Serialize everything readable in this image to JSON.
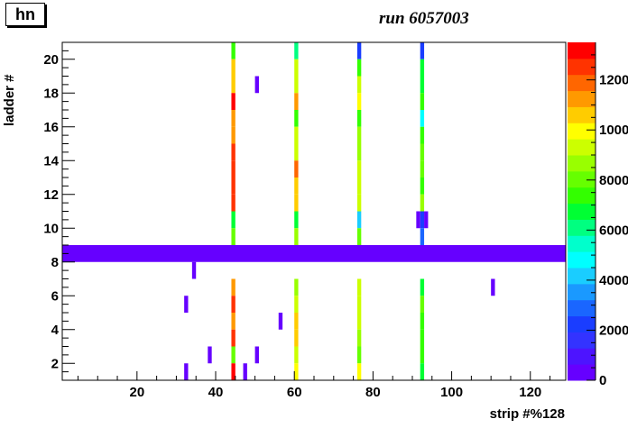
{
  "hist_label": "hn",
  "chart_data": {
    "type": "heatmap",
    "title": "run 6057003",
    "xlabel": "strip #%128",
    "ylabel": "ladder #",
    "xlim": [
      1,
      129
    ],
    "ylim": [
      1,
      21
    ],
    "x_ticks": [
      20,
      40,
      60,
      80,
      100,
      120
    ],
    "y_ticks": [
      2,
      4,
      6,
      8,
      10,
      12,
      14,
      16,
      18,
      20
    ],
    "zlim": [
      0,
      13500
    ],
    "z_ticks": [
      0,
      2000,
      4000,
      6000,
      8000,
      10000,
      12000
    ],
    "z_tick_labels": [
      "0",
      "2000",
      "4000",
      "6000",
      "8000",
      "10000",
      "12000"
    ],
    "colors": [
      "#6600ff",
      "#4d14ff",
      "#3333ff",
      "#1a3dff",
      "#1a66ff",
      "#1a99ff",
      "#1acdff",
      "#00ffff",
      "#00ffcc",
      "#00ff80",
      "#00ff33",
      "#33ff00",
      "#66ff00",
      "#99ff00",
      "#ccff00",
      "#ffff00",
      "#ffcc00",
      "#ff9900",
      "#ff6600",
      "#ff3300",
      "#ff0000"
    ],
    "cells": [
      {
        "x": 44,
        "w": 1,
        "y": 20,
        "v": 7200
      },
      {
        "x": 44,
        "w": 1,
        "y": 19,
        "v": 10400
      },
      {
        "x": 44,
        "w": 1,
        "y": 18,
        "v": 10400
      },
      {
        "x": 44,
        "w": 1,
        "y": 17,
        "v": 13200
      },
      {
        "x": 44,
        "w": 1,
        "y": 16,
        "v": 11000
      },
      {
        "x": 44,
        "w": 1,
        "y": 15,
        "v": 11500
      },
      {
        "x": 44,
        "w": 1,
        "y": 14,
        "v": 12400
      },
      {
        "x": 44,
        "w": 1,
        "y": 13,
        "v": 12400
      },
      {
        "x": 44,
        "w": 1,
        "y": 12,
        "v": 12800
      },
      {
        "x": 44,
        "w": 1,
        "y": 11,
        "v": 12400
      },
      {
        "x": 44,
        "w": 1,
        "y": 10,
        "v": 6800
      },
      {
        "x": 44,
        "w": 1,
        "y": 9,
        "v": 8000
      },
      {
        "x": 44,
        "w": 1,
        "y": 6,
        "v": 11400
      },
      {
        "x": 44,
        "w": 1,
        "y": 5,
        "v": 12800
      },
      {
        "x": 44,
        "w": 1,
        "y": 4,
        "v": 11000
      },
      {
        "x": 44,
        "w": 1,
        "y": 3,
        "v": 12800
      },
      {
        "x": 44,
        "w": 1,
        "y": 2,
        "v": 8000
      },
      {
        "x": 44,
        "w": 1,
        "y": 1,
        "v": 13500
      },
      {
        "x": 60,
        "w": 1,
        "y": 20,
        "v": 6000
      },
      {
        "x": 60,
        "w": 1,
        "y": 19,
        "v": 9000
      },
      {
        "x": 60,
        "w": 1,
        "y": 18,
        "v": 9000
      },
      {
        "x": 60,
        "w": 1,
        "y": 17,
        "v": 11400
      },
      {
        "x": 60,
        "w": 1,
        "y": 16,
        "v": 7600
      },
      {
        "x": 60,
        "w": 1,
        "y": 15,
        "v": 9400
      },
      {
        "x": 60,
        "w": 1,
        "y": 14,
        "v": 9400
      },
      {
        "x": 60,
        "w": 1,
        "y": 13,
        "v": 11600
      },
      {
        "x": 60,
        "w": 1,
        "y": 12,
        "v": 10600
      },
      {
        "x": 60,
        "w": 1,
        "y": 11,
        "v": 10400
      },
      {
        "x": 60,
        "w": 1,
        "y": 10,
        "v": 6500
      },
      {
        "x": 60,
        "w": 1,
        "y": 9,
        "v": 8400
      },
      {
        "x": 60,
        "w": 1,
        "y": 6,
        "v": 8600
      },
      {
        "x": 60,
        "w": 1,
        "y": 5,
        "v": 9200
      },
      {
        "x": 60,
        "w": 1,
        "y": 4,
        "v": 10800
      },
      {
        "x": 60,
        "w": 1,
        "y": 3,
        "v": 10800
      },
      {
        "x": 60,
        "w": 1,
        "y": 2,
        "v": 9200
      },
      {
        "x": 60,
        "w": 1,
        "y": 1,
        "v": 10000
      },
      {
        "x": 76,
        "w": 1,
        "y": 20,
        "v": 2500
      },
      {
        "x": 76,
        "w": 1,
        "y": 19,
        "v": 7600
      },
      {
        "x": 76,
        "w": 1,
        "y": 18,
        "v": 9000
      },
      {
        "x": 76,
        "w": 1,
        "y": 17,
        "v": 10200
      },
      {
        "x": 76,
        "w": 1,
        "y": 16,
        "v": 7600
      },
      {
        "x": 76,
        "w": 1,
        "y": 15,
        "v": 8800
      },
      {
        "x": 76,
        "w": 1,
        "y": 14,
        "v": 8800
      },
      {
        "x": 76,
        "w": 1,
        "y": 13,
        "v": 9000
      },
      {
        "x": 76,
        "w": 1,
        "y": 12,
        "v": 9200
      },
      {
        "x": 76,
        "w": 1,
        "y": 11,
        "v": 9600
      },
      {
        "x": 76,
        "w": 1,
        "y": 10,
        "v": 4100
      },
      {
        "x": 76,
        "w": 1,
        "y": 9,
        "v": 8000
      },
      {
        "x": 76,
        "w": 1,
        "y": 6,
        "v": 9000
      },
      {
        "x": 76,
        "w": 1,
        "y": 5,
        "v": 9400
      },
      {
        "x": 76,
        "w": 1,
        "y": 4,
        "v": 9000
      },
      {
        "x": 76,
        "w": 1,
        "y": 3,
        "v": 8600
      },
      {
        "x": 76,
        "w": 1,
        "y": 2,
        "v": 8300
      },
      {
        "x": 76,
        "w": 1,
        "y": 1,
        "v": 10200
      },
      {
        "x": 92,
        "w": 1,
        "y": 20,
        "v": 2500
      },
      {
        "x": 92,
        "w": 1,
        "y": 19,
        "v": 7000
      },
      {
        "x": 92,
        "w": 1,
        "y": 18,
        "v": 6600
      },
      {
        "x": 92,
        "w": 1,
        "y": 17,
        "v": 7600
      },
      {
        "x": 92,
        "w": 1,
        "y": 16,
        "v": 5000
      },
      {
        "x": 92,
        "w": 1,
        "y": 15,
        "v": 7400
      },
      {
        "x": 92,
        "w": 1,
        "y": 14,
        "v": 8300
      },
      {
        "x": 92,
        "w": 1,
        "y": 13,
        "v": 8300
      },
      {
        "x": 92,
        "w": 1,
        "y": 12,
        "v": 7600
      },
      {
        "x": 92,
        "w": 1,
        "y": 11,
        "v": 8600
      },
      {
        "x": 92,
        "w": 1,
        "y": 10,
        "v": 2000
      },
      {
        "x": 92,
        "w": 1,
        "y": 9,
        "v": 3000
      },
      {
        "x": 92,
        "w": 1,
        "y": 6,
        "v": 6600
      },
      {
        "x": 92,
        "w": 1,
        "y": 5,
        "v": 8000
      },
      {
        "x": 92,
        "w": 1,
        "y": 4,
        "v": 7200
      },
      {
        "x": 92,
        "w": 1,
        "y": 3,
        "v": 7200
      },
      {
        "x": 92,
        "w": 1,
        "y": 2,
        "v": 7600
      },
      {
        "x": 92,
        "w": 1,
        "y": 1,
        "v": 6800
      },
      {
        "x": 91,
        "w": 1,
        "y": 10,
        "v": 600
      },
      {
        "x": 93,
        "w": 1,
        "y": 10,
        "v": 600
      },
      {
        "x": 50,
        "w": 1,
        "y": 18,
        "v": 500
      },
      {
        "x": 34,
        "w": 1,
        "y": 7,
        "v": 500
      },
      {
        "x": 110,
        "w": 1,
        "y": 6,
        "v": 500
      },
      {
        "x": 32,
        "w": 1,
        "y": 5,
        "v": 500
      },
      {
        "x": 56,
        "w": 1,
        "y": 4,
        "v": 500
      },
      {
        "x": 38,
        "w": 1,
        "y": 2,
        "v": 500
      },
      {
        "x": 50,
        "w": 1,
        "y": 2,
        "v": 500
      },
      {
        "x": 32,
        "w": 1,
        "y": 1,
        "v": 500
      },
      {
        "x": 47,
        "w": 1,
        "y": 1,
        "v": 500
      },
      {
        "x": 1,
        "w": 128,
        "y": 8,
        "v": 500
      }
    ]
  }
}
